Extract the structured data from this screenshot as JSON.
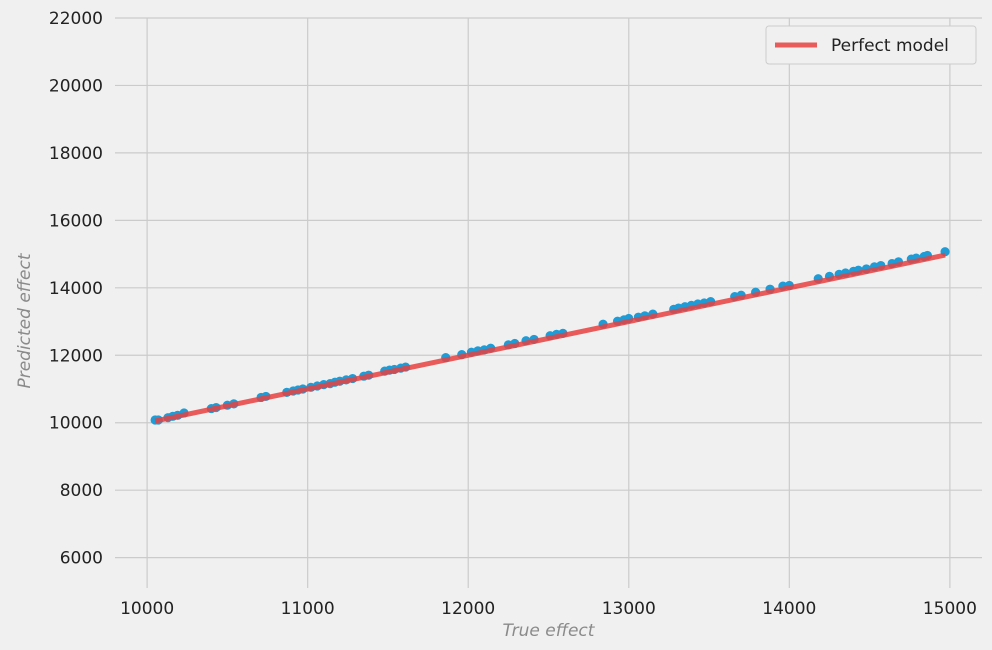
{
  "chart_data": {
    "type": "scatter",
    "title": "",
    "xlabel": "True effect",
    "ylabel": "Predicted effect",
    "xlim": [
      9800,
      15200
    ],
    "ylim": [
      5100,
      22000
    ],
    "xticks": [
      10000,
      11000,
      12000,
      13000,
      14000,
      15000
    ],
    "yticks": [
      6000,
      8000,
      10000,
      12000,
      14000,
      16000,
      18000,
      20000,
      22000
    ],
    "grid": true,
    "legend": {
      "position": "top-right",
      "entries": [
        "Perfect model"
      ]
    },
    "series": [
      {
        "kind": "scatter",
        "color": "#1f9bd6",
        "points": [
          [
            10050,
            10080
          ],
          [
            10070,
            10080
          ],
          [
            10130,
            10150
          ],
          [
            10160,
            10190
          ],
          [
            10190,
            10220
          ],
          [
            10230,
            10290
          ],
          [
            10400,
            10420
          ],
          [
            10430,
            10450
          ],
          [
            10500,
            10520
          ],
          [
            10540,
            10560
          ],
          [
            10710,
            10750
          ],
          [
            10740,
            10780
          ],
          [
            10870,
            10900
          ],
          [
            10910,
            10940
          ],
          [
            10940,
            10970
          ],
          [
            10970,
            11000
          ],
          [
            11020,
            11050
          ],
          [
            11060,
            11090
          ],
          [
            11100,
            11130
          ],
          [
            11140,
            11160
          ],
          [
            11170,
            11200
          ],
          [
            11200,
            11230
          ],
          [
            11240,
            11270
          ],
          [
            11280,
            11310
          ],
          [
            11350,
            11380
          ],
          [
            11380,
            11410
          ],
          [
            11480,
            11530
          ],
          [
            11510,
            11560
          ],
          [
            11540,
            11580
          ],
          [
            11580,
            11620
          ],
          [
            11610,
            11650
          ],
          [
            11860,
            11930
          ],
          [
            11960,
            12020
          ],
          [
            12020,
            12090
          ],
          [
            12060,
            12130
          ],
          [
            12100,
            12160
          ],
          [
            12140,
            12210
          ],
          [
            12250,
            12310
          ],
          [
            12290,
            12350
          ],
          [
            12360,
            12430
          ],
          [
            12410,
            12470
          ],
          [
            12510,
            12580
          ],
          [
            12550,
            12620
          ],
          [
            12590,
            12650
          ],
          [
            12840,
            12920
          ],
          [
            12930,
            13010
          ],
          [
            12970,
            13050
          ],
          [
            13000,
            13090
          ],
          [
            13060,
            13130
          ],
          [
            13100,
            13170
          ],
          [
            13150,
            13220
          ],
          [
            13280,
            13360
          ],
          [
            13310,
            13400
          ],
          [
            13350,
            13440
          ],
          [
            13390,
            13480
          ],
          [
            13430,
            13520
          ],
          [
            13470,
            13550
          ],
          [
            13510,
            13590
          ],
          [
            13660,
            13740
          ],
          [
            13700,
            13780
          ],
          [
            13790,
            13870
          ],
          [
            13880,
            13960
          ],
          [
            13960,
            14050
          ],
          [
            14000,
            14070
          ],
          [
            14180,
            14270
          ],
          [
            14250,
            14340
          ],
          [
            14310,
            14400
          ],
          [
            14350,
            14440
          ],
          [
            14400,
            14490
          ],
          [
            14430,
            14520
          ],
          [
            14480,
            14560
          ],
          [
            14530,
            14620
          ],
          [
            14570,
            14660
          ],
          [
            14640,
            14720
          ],
          [
            14680,
            14770
          ],
          [
            14760,
            14850
          ],
          [
            14790,
            14880
          ],
          [
            14840,
            14930
          ],
          [
            14860,
            14960
          ],
          [
            14970,
            15070
          ]
        ]
      },
      {
        "kind": "line",
        "name": "Perfect model",
        "color": "#e8413f",
        "points": [
          [
            10050,
            10050
          ],
          [
            14970,
            14970
          ]
        ]
      }
    ]
  }
}
